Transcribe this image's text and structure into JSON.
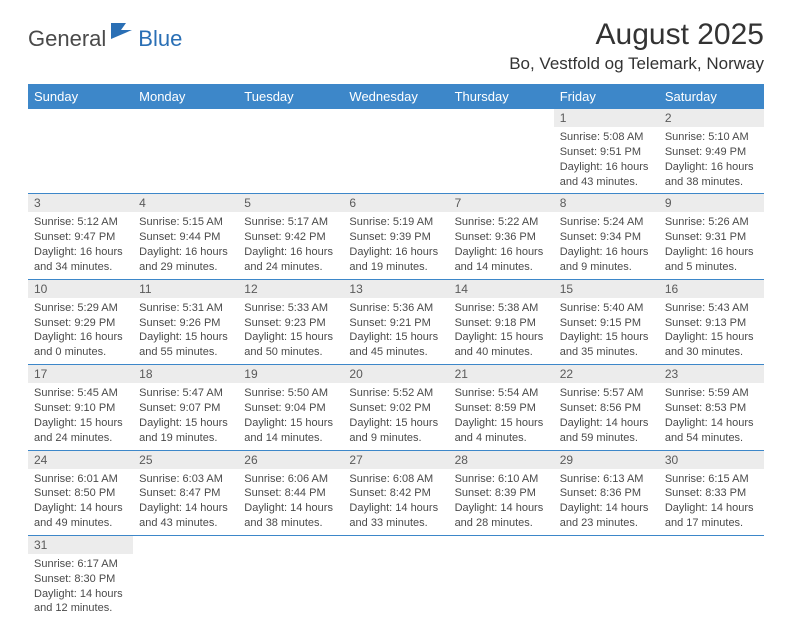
{
  "logo": {
    "text1": "General",
    "text2": "Blue"
  },
  "title": "August 2025",
  "location": "Bo, Vestfold og Telemark, Norway",
  "colors": {
    "header_bg": "#3d87c9",
    "header_text": "#ffffff",
    "daynum_bg": "#ececec",
    "border": "#3d87c9",
    "logo_blue": "#2a6fb5"
  },
  "weekdays": [
    "Sunday",
    "Monday",
    "Tuesday",
    "Wednesday",
    "Thursday",
    "Friday",
    "Saturday"
  ],
  "weeks": [
    [
      null,
      null,
      null,
      null,
      null,
      {
        "n": "1",
        "sr": "Sunrise: 5:08 AM",
        "ss": "Sunset: 9:51 PM",
        "d1": "Daylight: 16 hours",
        "d2": "and 43 minutes."
      },
      {
        "n": "2",
        "sr": "Sunrise: 5:10 AM",
        "ss": "Sunset: 9:49 PM",
        "d1": "Daylight: 16 hours",
        "d2": "and 38 minutes."
      }
    ],
    [
      {
        "n": "3",
        "sr": "Sunrise: 5:12 AM",
        "ss": "Sunset: 9:47 PM",
        "d1": "Daylight: 16 hours",
        "d2": "and 34 minutes."
      },
      {
        "n": "4",
        "sr": "Sunrise: 5:15 AM",
        "ss": "Sunset: 9:44 PM",
        "d1": "Daylight: 16 hours",
        "d2": "and 29 minutes."
      },
      {
        "n": "5",
        "sr": "Sunrise: 5:17 AM",
        "ss": "Sunset: 9:42 PM",
        "d1": "Daylight: 16 hours",
        "d2": "and 24 minutes."
      },
      {
        "n": "6",
        "sr": "Sunrise: 5:19 AM",
        "ss": "Sunset: 9:39 PM",
        "d1": "Daylight: 16 hours",
        "d2": "and 19 minutes."
      },
      {
        "n": "7",
        "sr": "Sunrise: 5:22 AM",
        "ss": "Sunset: 9:36 PM",
        "d1": "Daylight: 16 hours",
        "d2": "and 14 minutes."
      },
      {
        "n": "8",
        "sr": "Sunrise: 5:24 AM",
        "ss": "Sunset: 9:34 PM",
        "d1": "Daylight: 16 hours",
        "d2": "and 9 minutes."
      },
      {
        "n": "9",
        "sr": "Sunrise: 5:26 AM",
        "ss": "Sunset: 9:31 PM",
        "d1": "Daylight: 16 hours",
        "d2": "and 5 minutes."
      }
    ],
    [
      {
        "n": "10",
        "sr": "Sunrise: 5:29 AM",
        "ss": "Sunset: 9:29 PM",
        "d1": "Daylight: 16 hours",
        "d2": "and 0 minutes."
      },
      {
        "n": "11",
        "sr": "Sunrise: 5:31 AM",
        "ss": "Sunset: 9:26 PM",
        "d1": "Daylight: 15 hours",
        "d2": "and 55 minutes."
      },
      {
        "n": "12",
        "sr": "Sunrise: 5:33 AM",
        "ss": "Sunset: 9:23 PM",
        "d1": "Daylight: 15 hours",
        "d2": "and 50 minutes."
      },
      {
        "n": "13",
        "sr": "Sunrise: 5:36 AM",
        "ss": "Sunset: 9:21 PM",
        "d1": "Daylight: 15 hours",
        "d2": "and 45 minutes."
      },
      {
        "n": "14",
        "sr": "Sunrise: 5:38 AM",
        "ss": "Sunset: 9:18 PM",
        "d1": "Daylight: 15 hours",
        "d2": "and 40 minutes."
      },
      {
        "n": "15",
        "sr": "Sunrise: 5:40 AM",
        "ss": "Sunset: 9:15 PM",
        "d1": "Daylight: 15 hours",
        "d2": "and 35 minutes."
      },
      {
        "n": "16",
        "sr": "Sunrise: 5:43 AM",
        "ss": "Sunset: 9:13 PM",
        "d1": "Daylight: 15 hours",
        "d2": "and 30 minutes."
      }
    ],
    [
      {
        "n": "17",
        "sr": "Sunrise: 5:45 AM",
        "ss": "Sunset: 9:10 PM",
        "d1": "Daylight: 15 hours",
        "d2": "and 24 minutes."
      },
      {
        "n": "18",
        "sr": "Sunrise: 5:47 AM",
        "ss": "Sunset: 9:07 PM",
        "d1": "Daylight: 15 hours",
        "d2": "and 19 minutes."
      },
      {
        "n": "19",
        "sr": "Sunrise: 5:50 AM",
        "ss": "Sunset: 9:04 PM",
        "d1": "Daylight: 15 hours",
        "d2": "and 14 minutes."
      },
      {
        "n": "20",
        "sr": "Sunrise: 5:52 AM",
        "ss": "Sunset: 9:02 PM",
        "d1": "Daylight: 15 hours",
        "d2": "and 9 minutes."
      },
      {
        "n": "21",
        "sr": "Sunrise: 5:54 AM",
        "ss": "Sunset: 8:59 PM",
        "d1": "Daylight: 15 hours",
        "d2": "and 4 minutes."
      },
      {
        "n": "22",
        "sr": "Sunrise: 5:57 AM",
        "ss": "Sunset: 8:56 PM",
        "d1": "Daylight: 14 hours",
        "d2": "and 59 minutes."
      },
      {
        "n": "23",
        "sr": "Sunrise: 5:59 AM",
        "ss": "Sunset: 8:53 PM",
        "d1": "Daylight: 14 hours",
        "d2": "and 54 minutes."
      }
    ],
    [
      {
        "n": "24",
        "sr": "Sunrise: 6:01 AM",
        "ss": "Sunset: 8:50 PM",
        "d1": "Daylight: 14 hours",
        "d2": "and 49 minutes."
      },
      {
        "n": "25",
        "sr": "Sunrise: 6:03 AM",
        "ss": "Sunset: 8:47 PM",
        "d1": "Daylight: 14 hours",
        "d2": "and 43 minutes."
      },
      {
        "n": "26",
        "sr": "Sunrise: 6:06 AM",
        "ss": "Sunset: 8:44 PM",
        "d1": "Daylight: 14 hours",
        "d2": "and 38 minutes."
      },
      {
        "n": "27",
        "sr": "Sunrise: 6:08 AM",
        "ss": "Sunset: 8:42 PM",
        "d1": "Daylight: 14 hours",
        "d2": "and 33 minutes."
      },
      {
        "n": "28",
        "sr": "Sunrise: 6:10 AM",
        "ss": "Sunset: 8:39 PM",
        "d1": "Daylight: 14 hours",
        "d2": "and 28 minutes."
      },
      {
        "n": "29",
        "sr": "Sunrise: 6:13 AM",
        "ss": "Sunset: 8:36 PM",
        "d1": "Daylight: 14 hours",
        "d2": "and 23 minutes."
      },
      {
        "n": "30",
        "sr": "Sunrise: 6:15 AM",
        "ss": "Sunset: 8:33 PM",
        "d1": "Daylight: 14 hours",
        "d2": "and 17 minutes."
      }
    ],
    [
      {
        "n": "31",
        "sr": "Sunrise: 6:17 AM",
        "ss": "Sunset: 8:30 PM",
        "d1": "Daylight: 14 hours",
        "d2": "and 12 minutes."
      },
      null,
      null,
      null,
      null,
      null,
      null
    ]
  ]
}
